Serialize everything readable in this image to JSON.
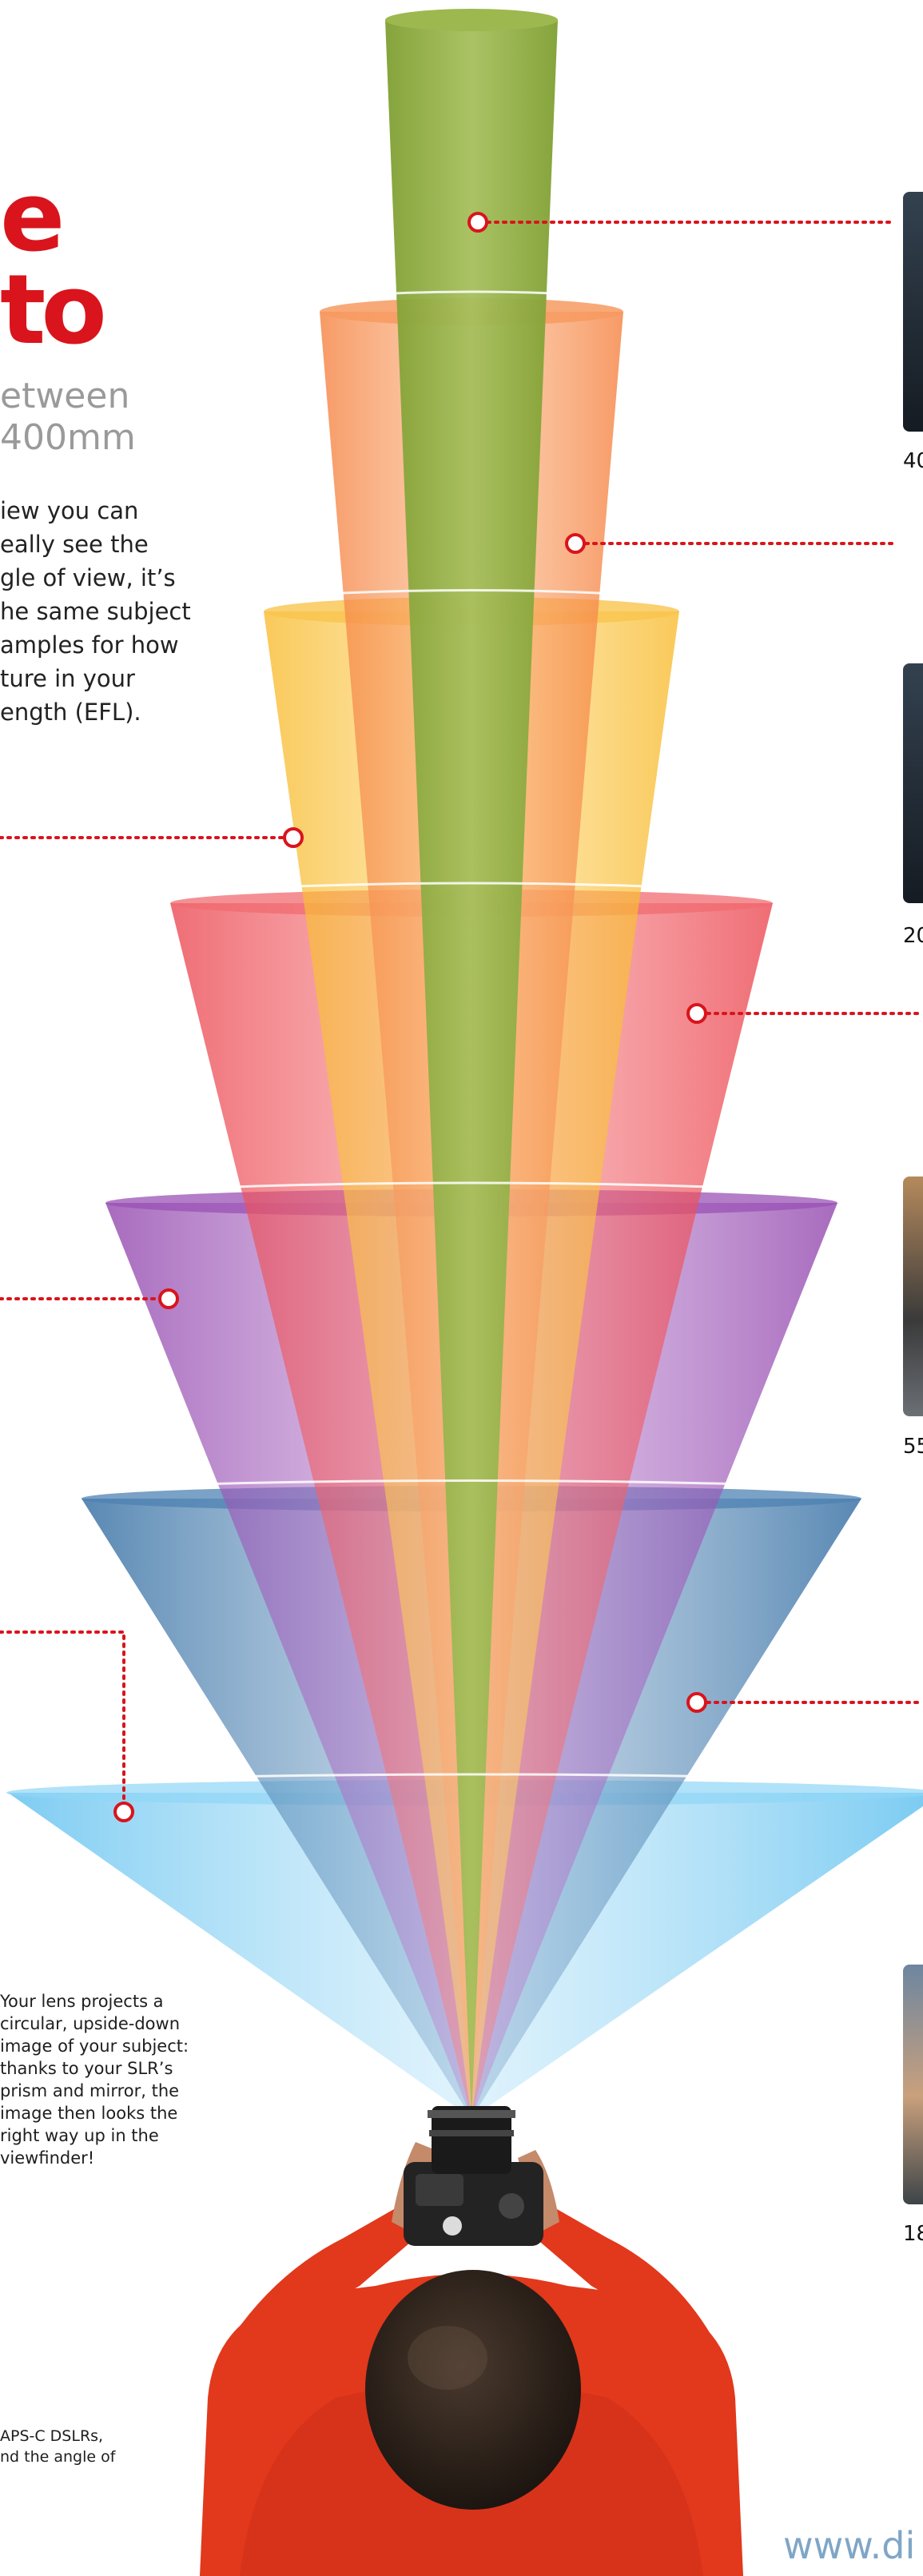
{
  "headline": {
    "title_fragment": "e\nto",
    "subtitle_fragment": "etween\n400mm",
    "intro_fragment": "iew you can\neally see the\ngle of view, it’s\nhe same subject\namples for how\nture in your\nength (EFL)."
  },
  "lens_caption": "Your lens projects a\ncircular, upside-down\nimage of your subject:\nthanks to your SLR’s\nprism and mirror, the\nimage then looks the\nright way up in the\nviewfinder!",
  "footnote_fragment": "APS-C DSLRs,\nnd the angle of",
  "photo_labels": [
    "40",
    "20",
    "55",
    "18"
  ],
  "web_address_fragment": "www.di",
  "colors": {
    "cone_green": "#8aa83c",
    "cone_orange": "#f4874a",
    "cone_yellow": "#f9c13a",
    "cone_red": "#ee4c53",
    "cone_purple": "#9b4fb3",
    "cone_blue": "#3d77ab",
    "cone_lightblue": "#7fcff3",
    "callout_red": "#d9141c",
    "shirt": "#e2381c"
  }
}
